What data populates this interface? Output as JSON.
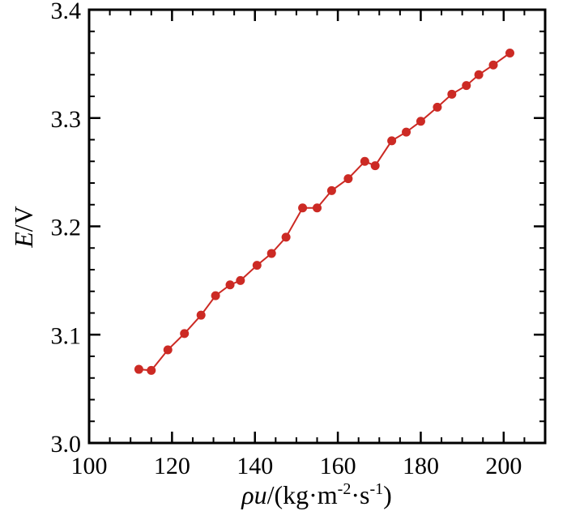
{
  "chart_data": {
    "type": "line",
    "title": "",
    "xlabel": "ρu/(kg·m-2·s-1)",
    "ylabel": "E/V",
    "xlim": [
      100,
      210
    ],
    "ylim": [
      3.0,
      3.4
    ],
    "x_ticks": [
      100,
      120,
      140,
      160,
      180,
      200
    ],
    "y_ticks": [
      3.0,
      3.1,
      3.2,
      3.3,
      3.4
    ],
    "x_tick_labels": [
      "100",
      "120",
      "140",
      "160",
      "180",
      "200"
    ],
    "y_tick_labels": [
      "3.0",
      "3.1",
      "3.2",
      "3.3",
      "3.4"
    ],
    "grid": false,
    "legend": "none",
    "series": [
      {
        "color": "#cc2a24",
        "marker": "circle",
        "x": [
          112,
          115,
          119,
          123,
          127,
          130.5,
          134,
          136.5,
          140.5,
          144,
          147.5,
          151.5,
          155,
          158.5,
          162.5,
          166.5,
          169,
          173,
          176.5,
          180,
          184,
          187.5,
          191,
          194,
          197.5,
          201.5
        ],
        "y": [
          3.068,
          3.067,
          3.086,
          3.101,
          3.118,
          3.136,
          3.146,
          3.15,
          3.164,
          3.175,
          3.19,
          3.217,
          3.217,
          3.233,
          3.244,
          3.26,
          3.256,
          3.279,
          3.287,
          3.297,
          3.31,
          3.322,
          3.33,
          3.34,
          3.349,
          3.36
        ]
      }
    ]
  },
  "axis_text": {
    "x_title_rho": "ρ",
    "x_title_u": "u",
    "x_title_units_open": "/(kg·m",
    "x_title_sup1": "-2",
    "x_title_mid": "·s",
    "x_title_sup2": "-1",
    "x_title_close": ")",
    "y_title_E": "E",
    "y_title_unit": "/V"
  }
}
